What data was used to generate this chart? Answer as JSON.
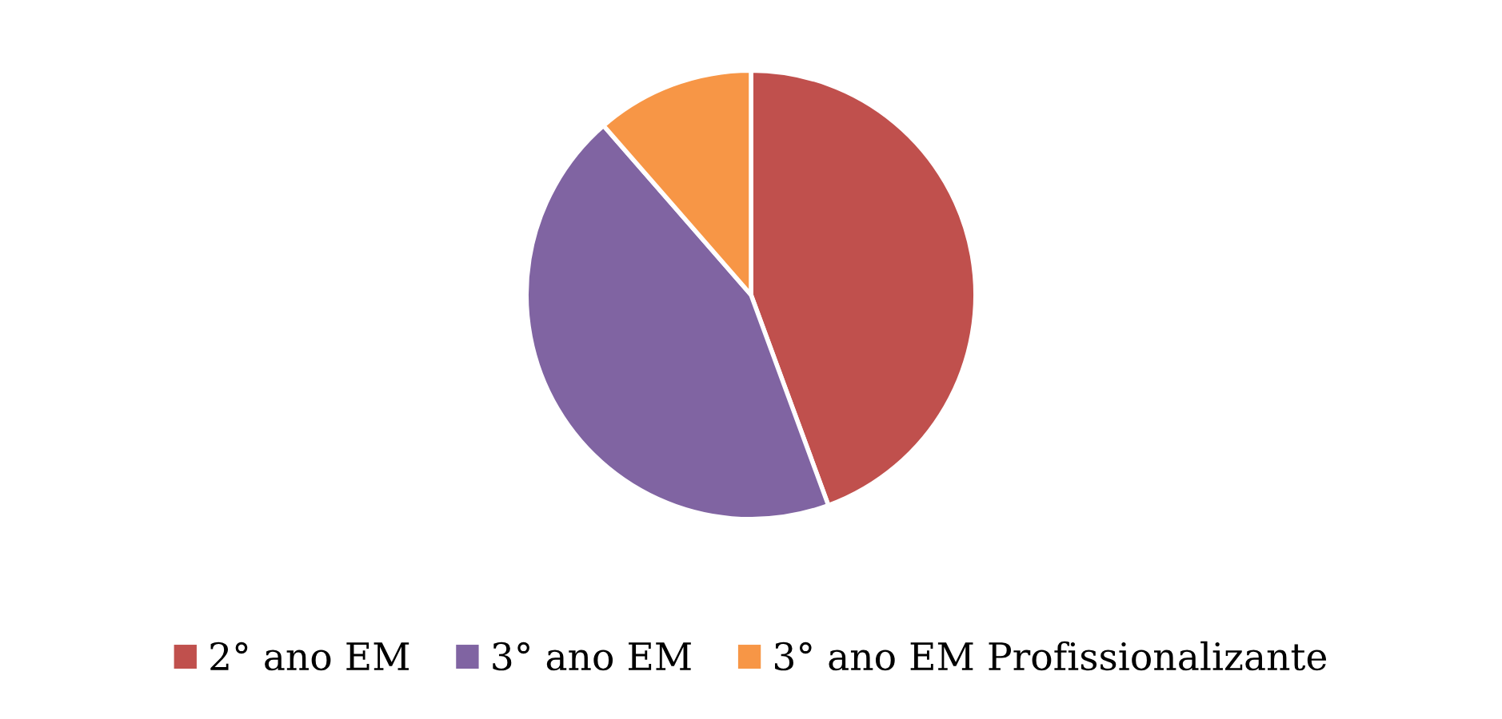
{
  "chart_data": {
    "type": "pie",
    "categories": [
      "2° ano EM",
      "3° ano EM",
      "3° ano EM Profissionalizante"
    ],
    "values": [
      44.4,
      44.2,
      11.4
    ],
    "colors": [
      "#c0504d",
      "#8064a2",
      "#f79646"
    ],
    "legend": "bottom"
  }
}
